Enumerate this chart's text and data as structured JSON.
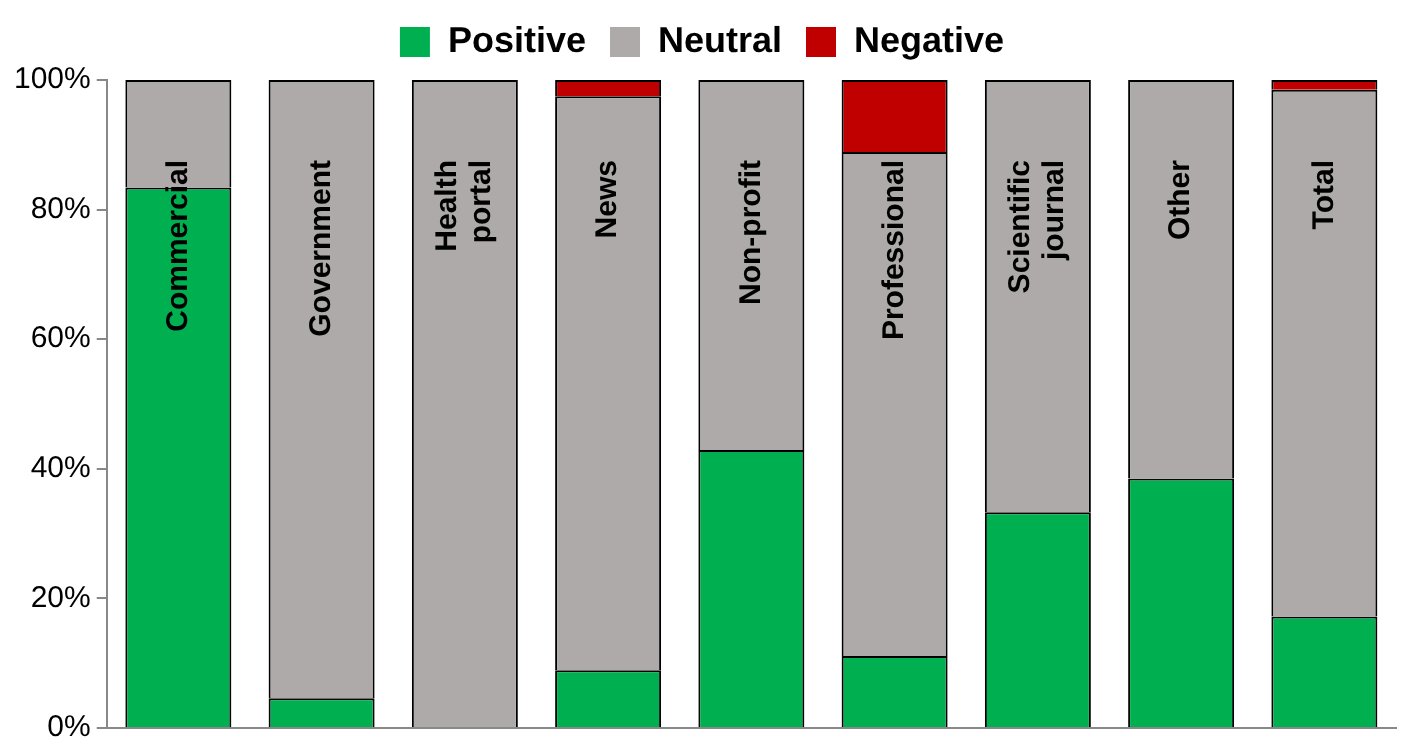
{
  "chart_data": {
    "type": "bar",
    "stacked": true,
    "categories": [
      "Commercial",
      "Government",
      "Health portal",
      "News",
      "Non-profit",
      "Professional",
      "Scientific journal",
      "Other",
      "Total"
    ],
    "series": [
      {
        "name": "Positive",
        "color": "#00b050",
        "values": [
          83.4,
          4.6,
          0,
          8.9,
          42.9,
          11.1,
          33.3,
          38.5,
          17.2
        ]
      },
      {
        "name": "Neutral",
        "color": "#aeaaaa",
        "values": [
          16.6,
          95.4,
          100,
          88.6,
          57.1,
          77.8,
          66.7,
          61.5,
          81.3
        ]
      },
      {
        "name": "Negative",
        "color": "#c00000",
        "values": [
          0,
          0,
          0,
          2.5,
          0,
          11.1,
          0,
          0,
          1.5
        ]
      }
    ],
    "ylim": [
      0,
      100
    ],
    "yticks": [
      {
        "value": 0,
        "label": "0%"
      },
      {
        "value": 20,
        "label": "20%"
      },
      {
        "value": 40,
        "label": "40%"
      },
      {
        "value": 60,
        "label": "60%"
      },
      {
        "value": 80,
        "label": "80%"
      },
      {
        "value": 100,
        "label": "100%"
      }
    ],
    "grid": false,
    "legend": "top",
    "tick_labels": "y"
  }
}
